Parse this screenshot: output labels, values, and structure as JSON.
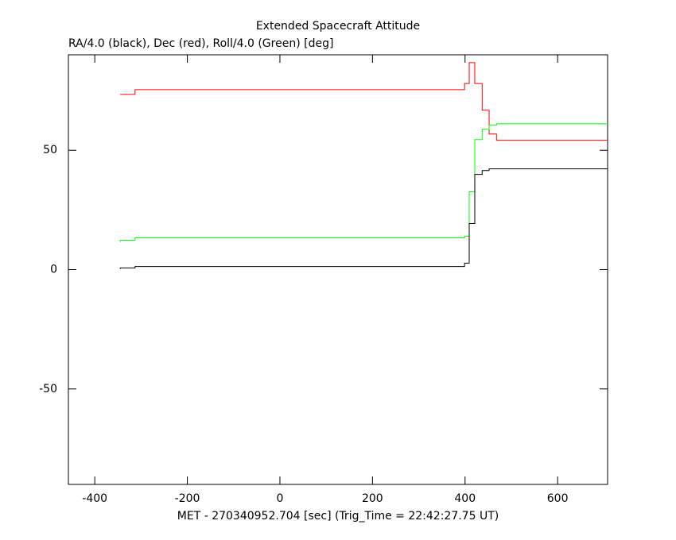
{
  "chart_data": {
    "type": "line",
    "step": "post",
    "title": "Extended Spacecraft Attitude",
    "subtitle": "RA/4.0 (black), Dec (red), Roll/4.0 (Green) [deg]",
    "x_label": "MET - 270340952.704 [sec] (Trig_Time = 22:42:27.75 UT)",
    "x": [
      -345,
      -313,
      399,
      409,
      421,
      437,
      452,
      468,
      481,
      708
    ],
    "series": [
      {
        "color": "#ff0000",
        "values": [
          73.4,
          73.4,
          75.4,
          78,
          86.7,
          78,
          66.8,
          56.8,
          54.2,
          54.2
        ]
      },
      {
        "color": "#00ff00",
        "values": [
          11.6,
          12.3,
          13.3,
          14,
          32.6,
          54.5,
          58.8,
          60.5,
          61.1,
          61.1
        ]
      },
      {
        "color": "#000000",
        "values": [
          0.3,
          0.7,
          1.3,
          2.7,
          19.3,
          39.9,
          41.5,
          42.2,
          42.2,
          42.2
        ]
      }
    ],
    "xlim": [
      -457,
      708
    ],
    "ylim": [
      -90,
      90
    ],
    "xticks": [
      -400,
      -200,
      0,
      200,
      400,
      600
    ],
    "yticks": [
      -50,
      0,
      50
    ]
  }
}
